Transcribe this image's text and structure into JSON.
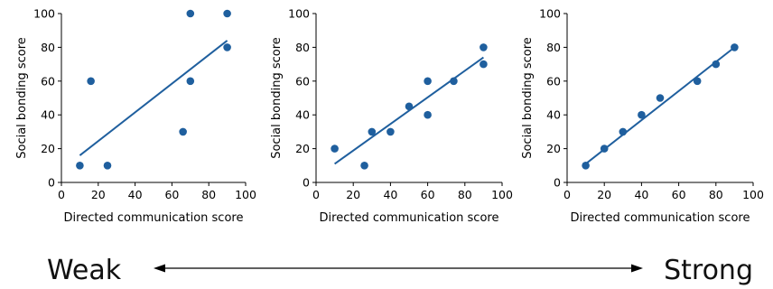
{
  "chart_data": [
    {
      "type": "scatter",
      "xlabel": "Directed communication score",
      "ylabel": "Social bonding score",
      "xlim": [
        0,
        100
      ],
      "ylim": [
        0,
        100
      ],
      "xticks": [
        0,
        20,
        40,
        60,
        80,
        100
      ],
      "yticks": [
        0,
        20,
        40,
        60,
        80,
        100
      ],
      "grid": false,
      "points": [
        {
          "x": 10,
          "y": 10
        },
        {
          "x": 16,
          "y": 60
        },
        {
          "x": 25,
          "y": 10
        },
        {
          "x": 66,
          "y": 30
        },
        {
          "x": 70,
          "y": 100
        },
        {
          "x": 70,
          "y": 60
        },
        {
          "x": 90,
          "y": 100
        },
        {
          "x": 90,
          "y": 80
        }
      ],
      "trendline": {
        "x": [
          10,
          90
        ],
        "y": [
          16,
          84
        ]
      },
      "marker_color": "#1f5f9e"
    },
    {
      "type": "scatter",
      "xlabel": "Directed communication score",
      "ylabel": "Social bonding score",
      "xlim": [
        0,
        100
      ],
      "ylim": [
        0,
        100
      ],
      "xticks": [
        0,
        20,
        40,
        60,
        80,
        100
      ],
      "yticks": [
        0,
        20,
        40,
        60,
        80,
        100
      ],
      "grid": false,
      "points": [
        {
          "x": 10,
          "y": 20
        },
        {
          "x": 26,
          "y": 10
        },
        {
          "x": 30,
          "y": 30
        },
        {
          "x": 40,
          "y": 30
        },
        {
          "x": 50,
          "y": 45
        },
        {
          "x": 60,
          "y": 60
        },
        {
          "x": 60,
          "y": 40
        },
        {
          "x": 74,
          "y": 60
        },
        {
          "x": 90,
          "y": 80
        },
        {
          "x": 90,
          "y": 70
        }
      ],
      "trendline": {
        "x": [
          10,
          90
        ],
        "y": [
          11,
          74
        ]
      },
      "marker_color": "#1f5f9e"
    },
    {
      "type": "scatter",
      "xlabel": "Directed communication score",
      "ylabel": "Social bonding score",
      "xlim": [
        0,
        100
      ],
      "ylim": [
        0,
        100
      ],
      "xticks": [
        0,
        20,
        40,
        60,
        80,
        100
      ],
      "yticks": [
        0,
        20,
        40,
        60,
        80,
        100
      ],
      "grid": false,
      "points": [
        {
          "x": 10,
          "y": 10
        },
        {
          "x": 20,
          "y": 20
        },
        {
          "x": 30,
          "y": 30
        },
        {
          "x": 40,
          "y": 40
        },
        {
          "x": 50,
          "y": 50
        },
        {
          "x": 70,
          "y": 60
        },
        {
          "x": 80,
          "y": 70
        },
        {
          "x": 90,
          "y": 80
        }
      ],
      "trendline": {
        "x": [
          10,
          90
        ],
        "y": [
          11,
          80
        ]
      },
      "marker_color": "#1f5f9e"
    }
  ],
  "scale": {
    "left_label": "Weak",
    "right_label": "Strong"
  }
}
